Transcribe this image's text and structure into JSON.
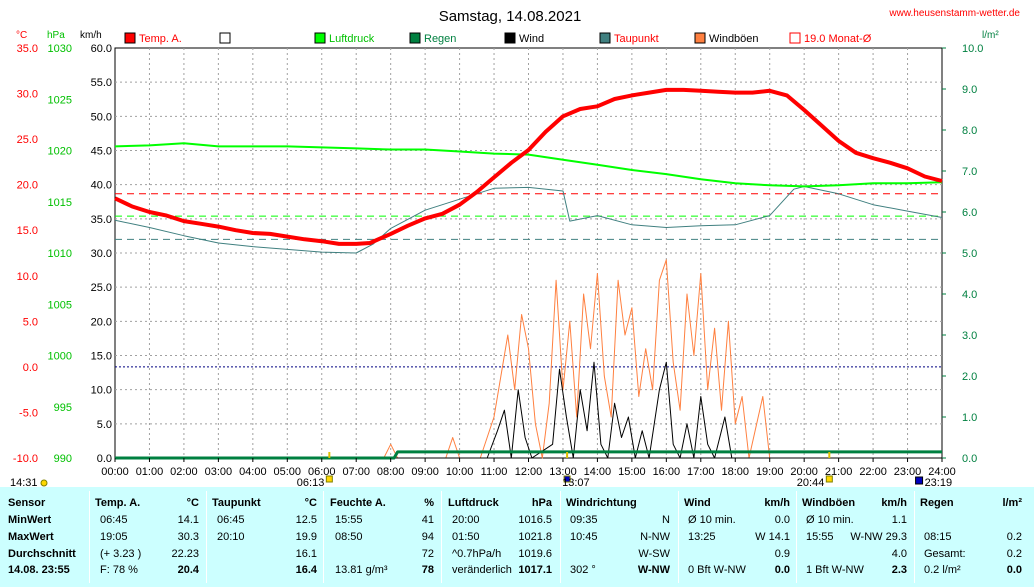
{
  "header": {
    "title": "Samstag, 14.08.2021",
    "site": "www.heusenstamm-wetter.de"
  },
  "axis_units": {
    "temp": "°C",
    "press": "hPa",
    "wind": "km/h",
    "rain": "l/m²"
  },
  "legend": [
    {
      "label": "Temp. A.",
      "color": "#ff0000"
    },
    {
      "label": "",
      "color": "#ffffff"
    },
    {
      "label": "Luftdruck",
      "color": "#00ff00"
    },
    {
      "label": "Regen",
      "color": "#008040"
    },
    {
      "label": "Wind",
      "color": "#000000"
    },
    {
      "label": "Taupunkt",
      "color": "#408080"
    },
    {
      "label": "Windböen",
      "color": "#ff8040"
    },
    {
      "label": "19.0 Monat-Ø",
      "color": "#ff0000"
    }
  ],
  "chart_data": {
    "type": "line",
    "x_ticks": [
      "00:00",
      "01:00",
      "02:00",
      "03:00",
      "04:00",
      "05:00",
      "06:00",
      "07:00",
      "08:00",
      "09:00",
      "10:00",
      "11:00",
      "12:00",
      "13:00",
      "14:00",
      "15:00",
      "16:00",
      "17:00",
      "18:00",
      "19:00",
      "20:00",
      "21:00",
      "22:00",
      "23:00",
      "24:00"
    ],
    "y_ticks": {
      "temp": [
        "35.0",
        "30.0",
        "25.0",
        "20.0",
        "15.0",
        "10.0",
        "5.0",
        "0.0",
        "-5.0",
        "-10.0"
      ],
      "press": [
        "1030",
        "1025",
        "1020",
        "1015",
        "1010",
        "1005",
        "1000",
        "995",
        "990"
      ],
      "wind": [
        "60.0",
        "55.0",
        "50.0",
        "45.0",
        "40.0",
        "35.0",
        "30.0",
        "25.0",
        "20.0",
        "15.0",
        "10.0",
        "5.0",
        "0.0"
      ],
      "rain": [
        "10.0",
        "9.0",
        "8.0",
        "7.0",
        "6.0",
        "5.0",
        "4.0",
        "3.0",
        "2.0",
        "1.0",
        "0.0"
      ]
    },
    "ylim": {
      "temp": [
        -10,
        35
      ],
      "press": [
        990,
        1030
      ],
      "wind": [
        0,
        60
      ],
      "rain": [
        0,
        10
      ]
    },
    "monthly_avg_temp": 19.0,
    "reference_lines": {
      "pressure_avg": 1013.6,
      "dewpoint_line": 14.0,
      "zero_temp": 0.0
    },
    "time_markers": [
      {
        "label": "06:13",
        "hour": 6.22,
        "kind": "sunrise"
      },
      {
        "label": "13:07",
        "hour": 13.12,
        "kind": "noon"
      },
      {
        "label": "20:44",
        "hour": 20.73,
        "kind": "sunset"
      }
    ],
    "bottom_labels": [
      {
        "label": "14:31",
        "hour": -0.2
      },
      {
        "label": "23:19",
        "hour": 23.32
      }
    ],
    "series": [
      {
        "name": "Temp. A.",
        "axis": "temp",
        "color": "#ff0000",
        "width": 4,
        "points": [
          [
            0,
            18.5
          ],
          [
            0.5,
            17.6
          ],
          [
            1,
            17.0
          ],
          [
            1.5,
            16.6
          ],
          [
            2,
            16.0
          ],
          [
            2.5,
            15.7
          ],
          [
            3,
            15.4
          ],
          [
            3.5,
            15.0
          ],
          [
            4,
            14.7
          ],
          [
            4.5,
            14.6
          ],
          [
            5,
            14.3
          ],
          [
            5.5,
            14.0
          ],
          [
            6,
            13.8
          ],
          [
            6.5,
            13.5
          ],
          [
            7,
            13.5
          ],
          [
            7.4,
            13.6
          ],
          [
            8,
            14.6
          ],
          [
            8.5,
            15.5
          ],
          [
            9,
            16.3
          ],
          [
            9.5,
            16.8
          ],
          [
            10,
            17.8
          ],
          [
            10.5,
            19.2
          ],
          [
            11,
            20.8
          ],
          [
            11.5,
            22.4
          ],
          [
            12,
            23.8
          ],
          [
            12.5,
            25.8
          ],
          [
            13,
            27.5
          ],
          [
            13.5,
            28.3
          ],
          [
            14,
            28.6
          ],
          [
            14.5,
            29.4
          ],
          [
            15,
            29.8
          ],
          [
            15.5,
            30.1
          ],
          [
            16,
            30.4
          ],
          [
            16.5,
            30.4
          ],
          [
            17,
            30.3
          ],
          [
            17.5,
            30.2
          ],
          [
            18,
            30.1
          ],
          [
            18.5,
            30.1
          ],
          [
            19,
            30.3
          ],
          [
            19.5,
            29.8
          ],
          [
            20,
            28.2
          ],
          [
            20.5,
            26.5
          ],
          [
            21,
            24.8
          ],
          [
            21.5,
            23.5
          ],
          [
            22,
            22.9
          ],
          [
            22.5,
            22.4
          ],
          [
            23,
            21.8
          ],
          [
            23.5,
            20.9
          ],
          [
            24,
            20.4
          ]
        ]
      },
      {
        "name": "Luftdruck",
        "axis": "press",
        "color": "#00ff00",
        "width": 2,
        "points": [
          [
            0,
            1020.4
          ],
          [
            1,
            1020.5
          ],
          [
            2,
            1020.7
          ],
          [
            3,
            1020.4
          ],
          [
            4,
            1020.4
          ],
          [
            5,
            1020.4
          ],
          [
            6,
            1020.3
          ],
          [
            7,
            1020.2
          ],
          [
            8,
            1020.1
          ],
          [
            9,
            1020.1
          ],
          [
            10,
            1019.9
          ],
          [
            11,
            1019.7
          ],
          [
            12,
            1019.6
          ],
          [
            13,
            1019.1
          ],
          [
            14,
            1018.6
          ],
          [
            15,
            1018.1
          ],
          [
            16,
            1017.7
          ],
          [
            17,
            1017.2
          ],
          [
            18,
            1016.8
          ],
          [
            19,
            1016.6
          ],
          [
            20,
            1016.5
          ],
          [
            21,
            1016.6
          ],
          [
            22,
            1016.8
          ],
          [
            23,
            1016.8
          ],
          [
            24,
            1016.9
          ]
        ]
      },
      {
        "name": "Taupunkt",
        "axis": "temp",
        "color": "#408080",
        "width": 1,
        "points": [
          [
            0,
            16.1
          ],
          [
            1,
            15.3
          ],
          [
            2,
            14.4
          ],
          [
            3,
            13.6
          ],
          [
            4,
            13.2
          ],
          [
            5,
            12.9
          ],
          [
            6,
            12.6
          ],
          [
            7,
            12.5
          ],
          [
            7.5,
            13.5
          ],
          [
            8,
            15.2
          ],
          [
            9,
            17.2
          ],
          [
            10,
            18.4
          ],
          [
            11,
            19.6
          ],
          [
            12,
            19.7
          ],
          [
            13,
            19.3
          ],
          [
            13.2,
            16.0
          ],
          [
            14,
            16.6
          ],
          [
            15,
            15.6
          ],
          [
            16,
            15.3
          ],
          [
            17,
            15.5
          ],
          [
            18,
            15.6
          ],
          [
            19,
            16.6
          ],
          [
            19.7,
            19.5
          ],
          [
            20,
            19.8
          ],
          [
            21,
            19.0
          ],
          [
            22,
            17.8
          ],
          [
            23,
            17.1
          ],
          [
            24,
            16.4
          ]
        ]
      },
      {
        "name": "Regen",
        "axis": "rain",
        "color": "#008040",
        "width": 3,
        "points": [
          [
            0,
            0
          ],
          [
            8.1,
            0
          ],
          [
            8.2,
            0.15
          ],
          [
            24,
            0.15
          ]
        ]
      },
      {
        "name": "Windböen",
        "axis": "wind",
        "color": "#ff8040",
        "width": 1,
        "points": [
          [
            0,
            0
          ],
          [
            7.8,
            0
          ],
          [
            8.0,
            2
          ],
          [
            8.2,
            0
          ],
          [
            9.6,
            0
          ],
          [
            9.8,
            3
          ],
          [
            10,
            0
          ],
          [
            10.6,
            0
          ],
          [
            11.0,
            6
          ],
          [
            11.2,
            12
          ],
          [
            11.4,
            18
          ],
          [
            11.6,
            10
          ],
          [
            11.8,
            21
          ],
          [
            12.0,
            16
          ],
          [
            12.2,
            5
          ],
          [
            12.4,
            0
          ],
          [
            12.6,
            8
          ],
          [
            12.8,
            26
          ],
          [
            13.0,
            10
          ],
          [
            13.2,
            20
          ],
          [
            13.4,
            6
          ],
          [
            13.6,
            24
          ],
          [
            13.8,
            16
          ],
          [
            14.0,
            27
          ],
          [
            14.2,
            12
          ],
          [
            14.4,
            6
          ],
          [
            14.6,
            26
          ],
          [
            14.8,
            18
          ],
          [
            15.0,
            22
          ],
          [
            15.2,
            9
          ],
          [
            15.4,
            16
          ],
          [
            15.6,
            10
          ],
          [
            15.8,
            26
          ],
          [
            16.0,
            29
          ],
          [
            16.2,
            14
          ],
          [
            16.4,
            7
          ],
          [
            16.6,
            24
          ],
          [
            16.8,
            15
          ],
          [
            17.0,
            27
          ],
          [
            17.2,
            10
          ],
          [
            17.4,
            19
          ],
          [
            17.6,
            7
          ],
          [
            17.8,
            20
          ],
          [
            18.0,
            5
          ],
          [
            18.2,
            9
          ],
          [
            18.4,
            0
          ],
          [
            18.8,
            9
          ],
          [
            19.0,
            0
          ],
          [
            24,
            0
          ]
        ]
      },
      {
        "name": "Wind",
        "axis": "wind",
        "color": "#000000",
        "width": 1,
        "points": [
          [
            0,
            0
          ],
          [
            10.8,
            0
          ],
          [
            11.1,
            4
          ],
          [
            11.3,
            7
          ],
          [
            11.5,
            0
          ],
          [
            11.7,
            10
          ],
          [
            11.9,
            3
          ],
          [
            12.1,
            0
          ],
          [
            12.7,
            2
          ],
          [
            12.9,
            13
          ],
          [
            13.1,
            6
          ],
          [
            13.3,
            0
          ],
          [
            13.5,
            10
          ],
          [
            13.7,
            4
          ],
          [
            13.9,
            14
          ],
          [
            14.1,
            2
          ],
          [
            14.3,
            0
          ],
          [
            14.5,
            8
          ],
          [
            14.7,
            3
          ],
          [
            14.9,
            6
          ],
          [
            15.1,
            0
          ],
          [
            15.3,
            4
          ],
          [
            15.5,
            0
          ],
          [
            15.8,
            10
          ],
          [
            16.0,
            14
          ],
          [
            16.2,
            2
          ],
          [
            16.4,
            0
          ],
          [
            16.6,
            5
          ],
          [
            16.8,
            0
          ],
          [
            17.0,
            9
          ],
          [
            17.2,
            2
          ],
          [
            17.4,
            0
          ],
          [
            17.7,
            6
          ],
          [
            17.9,
            0
          ],
          [
            24,
            0
          ]
        ]
      }
    ]
  },
  "stats": {
    "headers": {
      "sensor": "Sensor",
      "temp": "Temp. A.",
      "temp_unit": "°C",
      "dew": "Taupunkt",
      "dew_unit": "°C",
      "hum": "Feuchte A.",
      "hum_unit": "%",
      "press": "Luftdruck",
      "press_unit": "hPa",
      "wdir": "Windrichtung",
      "wind": "Wind",
      "wind_unit": "km/h",
      "gust": "Windböen",
      "gust_unit": "km/h",
      "rain": "Regen",
      "rain_unit": "l/m²"
    },
    "row_labels": [
      "MinWert",
      "MaxWert",
      "Durchschnitt",
      "14.08. 23:55"
    ],
    "rows": [
      {
        "temp_t": "06:45",
        "temp_v": "14.1",
        "dew_t": "06:45",
        "dew_v": "12.5",
        "hum_t": "15:55",
        "hum_v": "41",
        "press_t": "20:00",
        "press_v": "1016.5",
        "wdir_t": "09:35",
        "wdir_v": "N",
        "wind_t": "Ø 10 min.",
        "wind_v": "0.0",
        "gust_t": "Ø 10 min.",
        "gust_v": "1.1",
        "rain_t": "",
        "rain_v": ""
      },
      {
        "temp_t": "19:05",
        "temp_v": "30.3",
        "dew_t": "20:10",
        "dew_v": "19.9",
        "hum_t": "08:50",
        "hum_v": "94",
        "press_t": "01:50",
        "press_v": "1021.8",
        "wdir_t": "10:45",
        "wdir_v": "N-NW",
        "wind_t": "13:25",
        "wind_v": "W 14.1",
        "gust_t": "15:55",
        "gust_v": "W-NW 29.3",
        "rain_t": "08:15",
        "rain_v": "0.2"
      },
      {
        "temp_t": "(+ 3.23 )",
        "temp_v": "22.23",
        "dew_t": "",
        "dew_v": "16.1",
        "hum_t": "",
        "hum_v": "72",
        "press_t": "^0.7hPa/h",
        "press_v": "1019.6",
        "wdir_t": "",
        "wdir_v": "W-SW",
        "wind_t": "",
        "wind_v": "0.9",
        "gust_t": "",
        "gust_v": "4.0",
        "rain_t": "Gesamt:",
        "rain_v": "0.2"
      },
      {
        "temp_t": "F: 78 %",
        "temp_v": "20.4",
        "dew_t": "",
        "dew_v": "16.4",
        "hum_t": "13.81 g/m³",
        "hum_v": "78",
        "press_t": "veränderlich",
        "press_v": "1017.1",
        "wdir_t": "302 °",
        "wdir_v": "W-NW",
        "wind_t": "0 Bft W-NW",
        "wind_v": "0.0",
        "gust_t": "1 Bft W-NW",
        "gust_v": "2.3",
        "rain_t": "0.2 l/m²",
        "rain_v": "0.0"
      }
    ]
  }
}
